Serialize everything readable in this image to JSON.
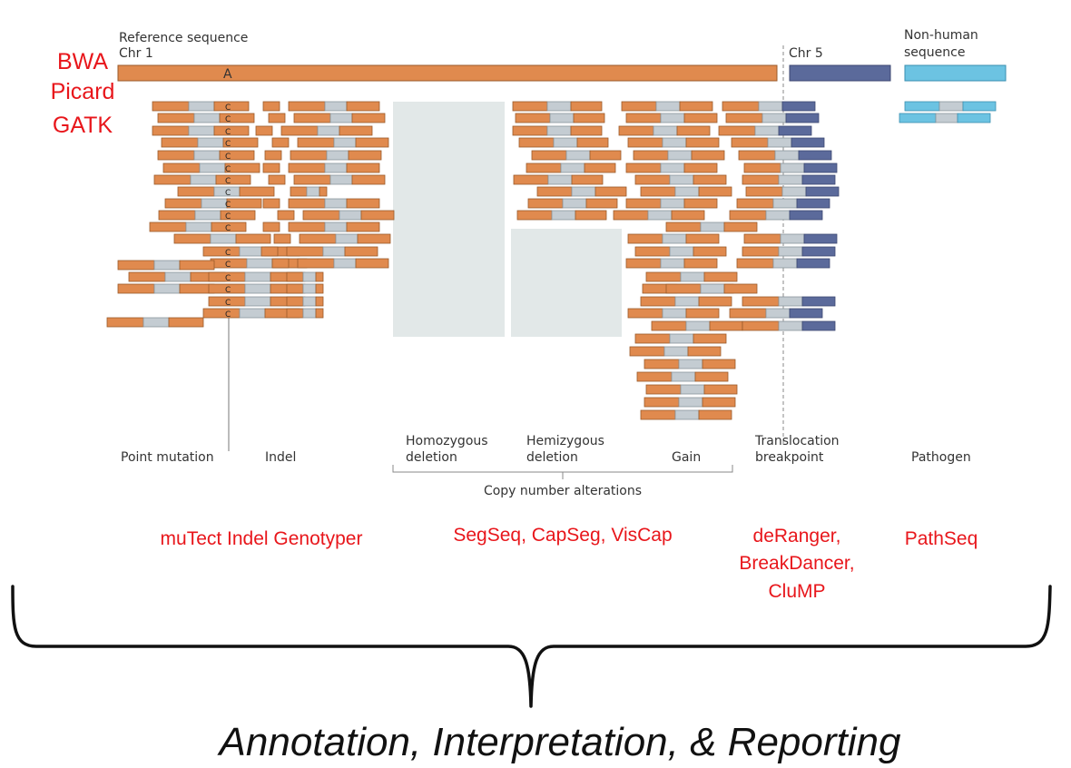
{
  "reference": {
    "title": "Reference sequence",
    "chr1": "Chr 1",
    "chr5": "Chr 5",
    "base_ref": "A",
    "base_alt": "C",
    "nonhuman": [
      "Non-human",
      "sequence"
    ]
  },
  "pipeline_tools": [
    "BWA",
    "Picard",
    "GATK"
  ],
  "categories": {
    "point_mutation": "Point mutation",
    "indel": "Indel",
    "homozygous": [
      "Homozygous",
      "deletion"
    ],
    "hemizygous": [
      "Hemizygous",
      "deletion"
    ],
    "gain": "Gain",
    "translocation": [
      "Translocation",
      "breakpoint"
    ],
    "pathogen": "Pathogen",
    "copy_number": "Copy number alterations"
  },
  "tools": {
    "mutation": "muTect Indel Genotyper",
    "copy_number": "SegSeq, CapSeg, VisCap",
    "translocation": [
      "deRanger,",
      "BreakDancer,",
      "CluMP"
    ],
    "pathogen": "PathSeq"
  },
  "footer": "Annotation, Interpretation, & Reporting",
  "colors": {
    "orange": "#e08a4e",
    "grey": "#c4ccd2",
    "navy": "#5b6a9b",
    "cyan": "#6cc3e2",
    "deletion_block": "#e2e8e8",
    "red_text": "#e8161b"
  }
}
